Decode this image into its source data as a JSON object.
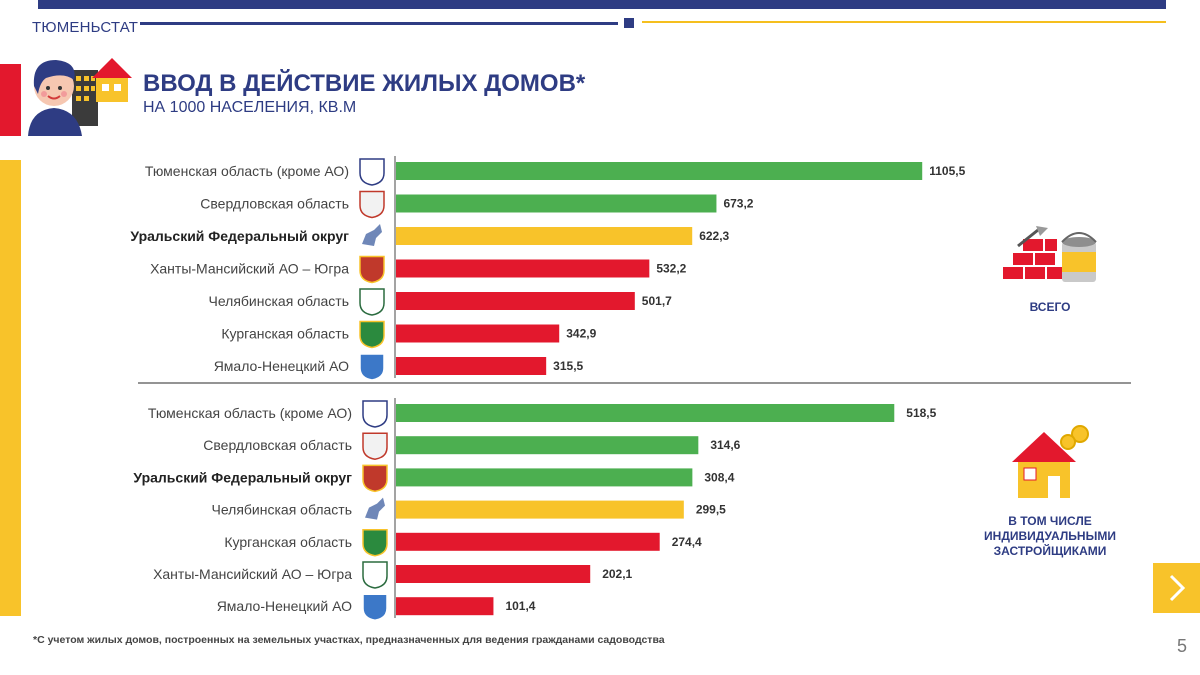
{
  "header": {
    "brand": "ТЮМЕНЬСТАТ",
    "title": "ВВОД В ДЕЙСТВИЕ ЖИЛЫХ ДОМОВ*",
    "subtitle": "НА 1000 НАСЕЛЕНИЯ, КВ.М"
  },
  "colors": {
    "navy": "#2e3c83",
    "green": "#4caf50",
    "yellow": "#f8c32a",
    "red": "#e3182d"
  },
  "chart_data": [
    {
      "type": "bar",
      "orientation": "horizontal",
      "caption": "ВСЕГО",
      "categories": [
        "Тюменская область (кроме АО)",
        "Свердловская область",
        "Уральский Федеральный округ",
        "Ханты-Мансийский АО – Югра",
        "Челябинская область",
        "Курганская область",
        "Ямало-Ненецкий АО"
      ],
      "values": [
        1105.5,
        673.2,
        622.3,
        532.2,
        501.7,
        342.9,
        315.5
      ],
      "value_labels": [
        "1105,5",
        "673,2",
        "622,3",
        "532,2",
        "501,7",
        "342,9",
        "315,5"
      ],
      "bar_colors": [
        "green",
        "green",
        "yellow",
        "red",
        "red",
        "red",
        "red"
      ],
      "bold": [
        false,
        false,
        true,
        false,
        false,
        false,
        false
      ],
      "emblems": [
        "tyumen-emblem-icon",
        "sverdlovsk-emblem-icon",
        "urals-map-icon",
        "chelyabinsk-emblem-icon",
        "khmao-emblem-icon",
        "kurgan-emblem-icon",
        "yanao-emblem-icon"
      ],
      "xlim": [
        0,
        1105.5
      ]
    },
    {
      "type": "bar",
      "orientation": "horizontal",
      "caption": "В ТОМ ЧИСЛЕ ИНДИВИДУАЛЬНЫМИ ЗАСТРОЙЩИКАМИ",
      "categories": [
        "Тюменская область (кроме АО)",
        "Свердловская область",
        "Уральский Федеральный округ",
        "Челябинская область",
        "Курганская область",
        "Ханты-Мансийский АО – Югра",
        "Ямало-Ненецкий АО"
      ],
      "values": [
        518.5,
        314.6,
        308.4,
        299.5,
        274.4,
        202.1,
        101.4
      ],
      "value_labels": [
        "518,5",
        "314,6",
        "308,4",
        "299,5",
        "274,4",
        "202,1",
        "101,4"
      ],
      "bar_colors": [
        "green",
        "green",
        "green",
        "yellow",
        "red",
        "red",
        "red"
      ],
      "bold": [
        false,
        false,
        true,
        false,
        false,
        false,
        false
      ],
      "emblems": [
        "tyumen-emblem-icon",
        "sverdlovsk-emblem-icon",
        "chelyabinsk-emblem-icon",
        "urals-map-icon",
        "kurgan-emblem-icon",
        "khmao-emblem-icon",
        "yanao-emblem-icon"
      ],
      "xlim": [
        0,
        1105.5
      ]
    }
  ],
  "footnote": "*С учетом жилых домов, построенных на земельных участках, предназначенных для ведения гражданами садоводства",
  "page_number": "5",
  "icons": {
    "hero": "person-with-house-icon",
    "total": "bricks-and-paint-icon",
    "individual": "house-with-coins-icon",
    "next": "chevron-right-icon"
  }
}
